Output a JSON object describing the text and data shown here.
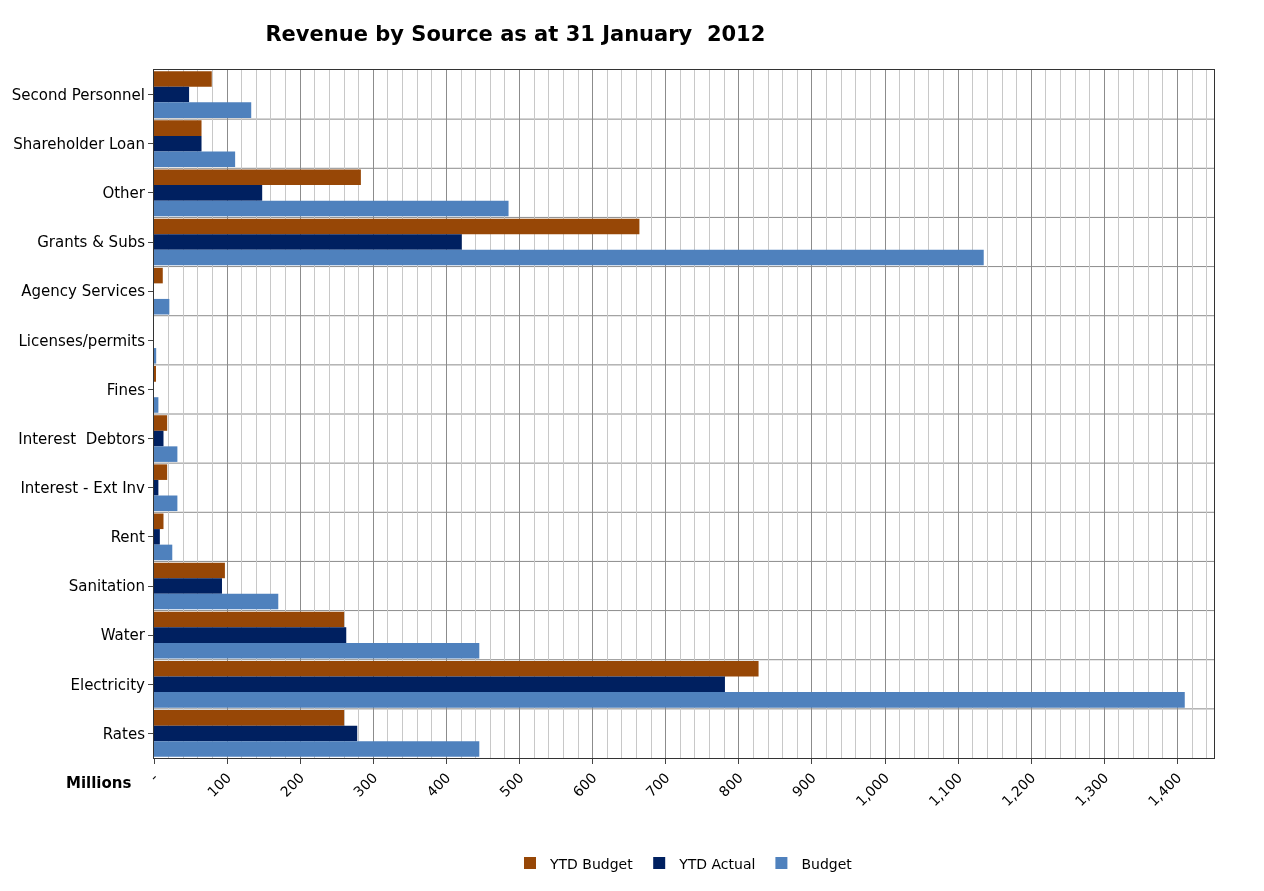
{
  "chart_data": {
    "type": "bar",
    "orientation": "horizontal",
    "title": "Revenue by Source as at 31 January  2012",
    "xlabel": "Millions",
    "categories": [
      "Second Personnel",
      "Shareholder Loan",
      "Other",
      "Grants & Subs",
      "Agency Services",
      "Licenses/permits",
      "Fines",
      "Interest  Debtors",
      "Interest - Ext Inv",
      "Rent",
      "Sanitation",
      "Water",
      "Electricity",
      "Rates"
    ],
    "series": [
      {
        "name": "YTD Budget",
        "color": "#974706",
        "values": [
          79,
          65,
          283,
          664,
          12,
          0,
          2,
          18,
          18,
          13,
          97,
          260,
          827,
          260
        ]
      },
      {
        "name": "YTD Actual",
        "color": "#002060",
        "values": [
          48,
          65,
          148,
          421,
          0,
          0,
          0,
          13,
          6,
          8,
          93,
          263,
          781,
          278
        ]
      },
      {
        "name": "Budget",
        "color": "#4f81bd",
        "values": [
          133,
          111,
          485,
          1135,
          21,
          3,
          6,
          32,
          32,
          25,
          170,
          445,
          1410,
          445
        ]
      }
    ],
    "xlim": [
      0,
      1450
    ],
    "xticks": [
      {
        "value": 0,
        "label": "-"
      },
      100,
      200,
      300,
      400,
      500,
      600,
      700,
      800,
      900,
      {
        "value": 1000,
        "label": "1,000"
      },
      {
        "value": 1100,
        "label": "1,100"
      },
      {
        "value": 1200,
        "label": "1,200"
      },
      {
        "value": 1300,
        "label": "1,300"
      },
      {
        "value": 1400,
        "label": "1,400"
      }
    ],
    "grid": true,
    "legend": "bottom"
  }
}
